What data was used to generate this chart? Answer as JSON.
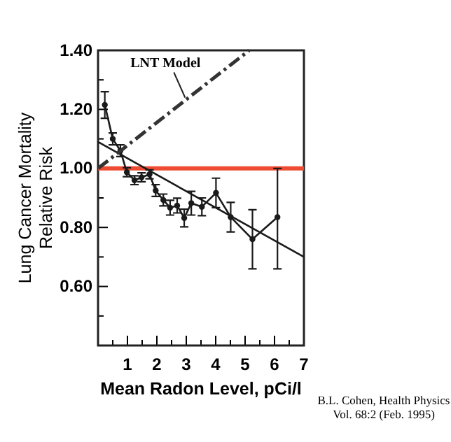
{
  "chart_data": {
    "type": "line",
    "xlabel": "Mean Radon Level, pCi/l",
    "ylabel": "Lung Cancer Mortality\nRelative Risk",
    "xlim": [
      0,
      7
    ],
    "ylim": [
      0.4,
      1.4
    ],
    "xticks": [
      {
        "value": 0.5,
        "label": null
      },
      1,
      {
        "value": 1.5,
        "label": null
      },
      2,
      {
        "value": 2.5,
        "label": null
      },
      3,
      {
        "value": 3.5,
        "label": null
      },
      4,
      {
        "value": 4.5,
        "label": null
      },
      5,
      {
        "value": 5.5,
        "label": null
      },
      6,
      {
        "value": 6.5,
        "label": null
      },
      7
    ],
    "yticks": [
      {
        "value": 0.5,
        "label": null
      },
      {
        "value": 0.6,
        "label": "0.60"
      },
      {
        "value": 0.7,
        "label": null
      },
      {
        "value": 0.8,
        "label": "0.80"
      },
      {
        "value": 0.9,
        "label": null
      },
      {
        "value": 1.0,
        "label": "1.00"
      },
      {
        "value": 1.1,
        "label": null
      },
      {
        "value": 1.2,
        "label": "1.20"
      },
      {
        "value": 1.3,
        "label": null
      },
      {
        "value": 1.4,
        "label": "1.40"
      }
    ],
    "grid": false,
    "series": [
      {
        "type": "line",
        "color": "#1a1a1a",
        "marker": "circle",
        "line_style": "solid",
        "x": [
          0.23,
          0.5,
          0.76,
          0.98,
          1.24,
          1.48,
          1.75,
          1.96,
          2.22,
          2.45,
          2.69,
          2.93,
          3.17,
          3.53,
          4.01,
          4.51,
          5.25,
          6.1
        ],
        "values": [
          1.215,
          1.1,
          1.06,
          0.987,
          0.96,
          0.97,
          0.98,
          0.925,
          0.893,
          0.867,
          0.874,
          0.832,
          0.882,
          0.87,
          0.917,
          0.835,
          0.76,
          0.835
        ],
        "errors": [
          [
            1.17,
            1.26
          ],
          0.02,
          0.02,
          0.015,
          0.015,
          0.015,
          0.015,
          0.02,
          0.02,
          0.025,
          0.025,
          0.03,
          0.04,
          0.03,
          0.05,
          0.05,
          0.1,
          [
            0.66,
            1.0
          ]
        ]
      },
      {
        "type": "line",
        "color": "#1a1a1a",
        "marker": "none",
        "line_style": "solid",
        "x": [
          0,
          7
        ],
        "values": [
          1.09,
          0.7
        ]
      },
      {
        "type": "line",
        "color": "#333333",
        "marker": "none",
        "line_style": "dashed",
        "x": [
          0,
          5.14
        ],
        "values": [
          1.0,
          1.4
        ]
      }
    ],
    "ref_lines": [
      {
        "axis": "y",
        "value": 1.0,
        "color": "#ee4b33"
      }
    ],
    "annotations": [
      {
        "text": "LNT Model",
        "x": 2.96,
        "y": 1.24
      },
      "B.L. Cohen, Health Physics\nVol. 68:2 (Feb. 1995)"
    ]
  }
}
